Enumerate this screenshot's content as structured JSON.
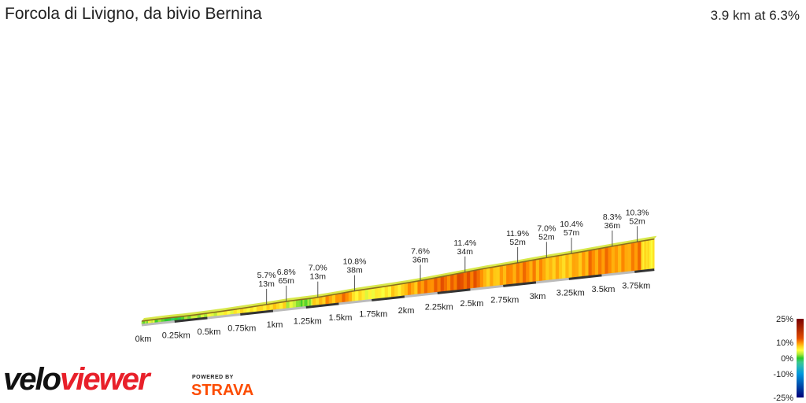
{
  "header": {
    "title": "Forcola di Livigno, da bivio Bernina",
    "summary": "3.9 km at 6.3%"
  },
  "branding": {
    "logo_part1": "velo",
    "logo_part2": "viewer",
    "powered_by": "POWERED BY",
    "strava": "STRAVA"
  },
  "colors": {
    "profile_top_line": "#8a6d1e",
    "legend_max": "#8b0000",
    "legend_10": "#ff9900",
    "legend_5": "#ffff33",
    "legend_0": "#33cc33",
    "legend_neg": "#0000aa"
  },
  "chart_data": {
    "type": "area",
    "title": "Forcola di Livigno, da bivio Bernina",
    "xlabel": "",
    "ylabel": "",
    "x_unit": "km",
    "x_ticks": [
      "0km",
      "0.25km",
      "0.5km",
      "0.75km",
      "1km",
      "1.25km",
      "1.5km",
      "1.75km",
      "2km",
      "2.25km",
      "2.5km",
      "2.75km",
      "3km",
      "3.25km",
      "3.5km",
      "3.75km"
    ],
    "x_tick_values": [
      0,
      0.25,
      0.5,
      0.75,
      1,
      1.25,
      1.5,
      1.75,
      2,
      2.25,
      2.5,
      2.75,
      3,
      3.25,
      3.5,
      3.75
    ],
    "distance_km": [
      0,
      0.05,
      0.1,
      0.2,
      0.3,
      0.4,
      0.5,
      0.6,
      0.7,
      0.8,
      0.9,
      1.0,
      1.1,
      1.2,
      1.25,
      1.3,
      1.4,
      1.5,
      1.6,
      1.7,
      1.8,
      1.9,
      2.0,
      2.1,
      2.2,
      2.3,
      2.4,
      2.5,
      2.6,
      2.7,
      2.8,
      2.9,
      3.0,
      3.1,
      3.2,
      3.3,
      3.4,
      3.5,
      3.6,
      3.7,
      3.8,
      3.85,
      3.9
    ],
    "gradient_pct": [
      1,
      2,
      4,
      1,
      -1,
      2,
      3,
      4,
      5,
      6,
      6,
      7,
      7,
      3,
      1,
      2,
      8,
      9,
      10,
      6,
      5,
      6,
      7,
      9,
      10,
      11,
      11,
      12,
      11,
      8,
      9,
      10,
      10,
      9,
      8,
      8,
      9,
      10,
      10,
      9,
      10,
      7,
      6
    ],
    "annotations": [
      {
        "gradient": "5.7%",
        "length": "13m",
        "km": 0.95
      },
      {
        "gradient": "6.8%",
        "length": "65m",
        "km": 1.1
      },
      {
        "gradient": "7.0%",
        "length": "13m",
        "km": 1.34
      },
      {
        "gradient": "10.8%",
        "length": "38m",
        "km": 1.62
      },
      {
        "gradient": "7.6%",
        "length": "36m",
        "km": 2.12
      },
      {
        "gradient": "11.4%",
        "length": "34m",
        "km": 2.46
      },
      {
        "gradient": "11.9%",
        "length": "52m",
        "km": 2.86
      },
      {
        "gradient": "7.0%",
        "length": "52m",
        "km": 3.08
      },
      {
        "gradient": "10.4%",
        "length": "57m",
        "km": 3.27
      },
      {
        "gradient": "8.3%",
        "length": "36m",
        "km": 3.58
      },
      {
        "gradient": "10.3%",
        "length": "52m",
        "km": 3.77
      }
    ],
    "legend": {
      "labels": [
        "25%",
        "10%",
        "0%",
        "-10%",
        "-25%"
      ],
      "values": [
        25,
        10,
        0,
        -10,
        -25
      ]
    },
    "grid": false
  }
}
